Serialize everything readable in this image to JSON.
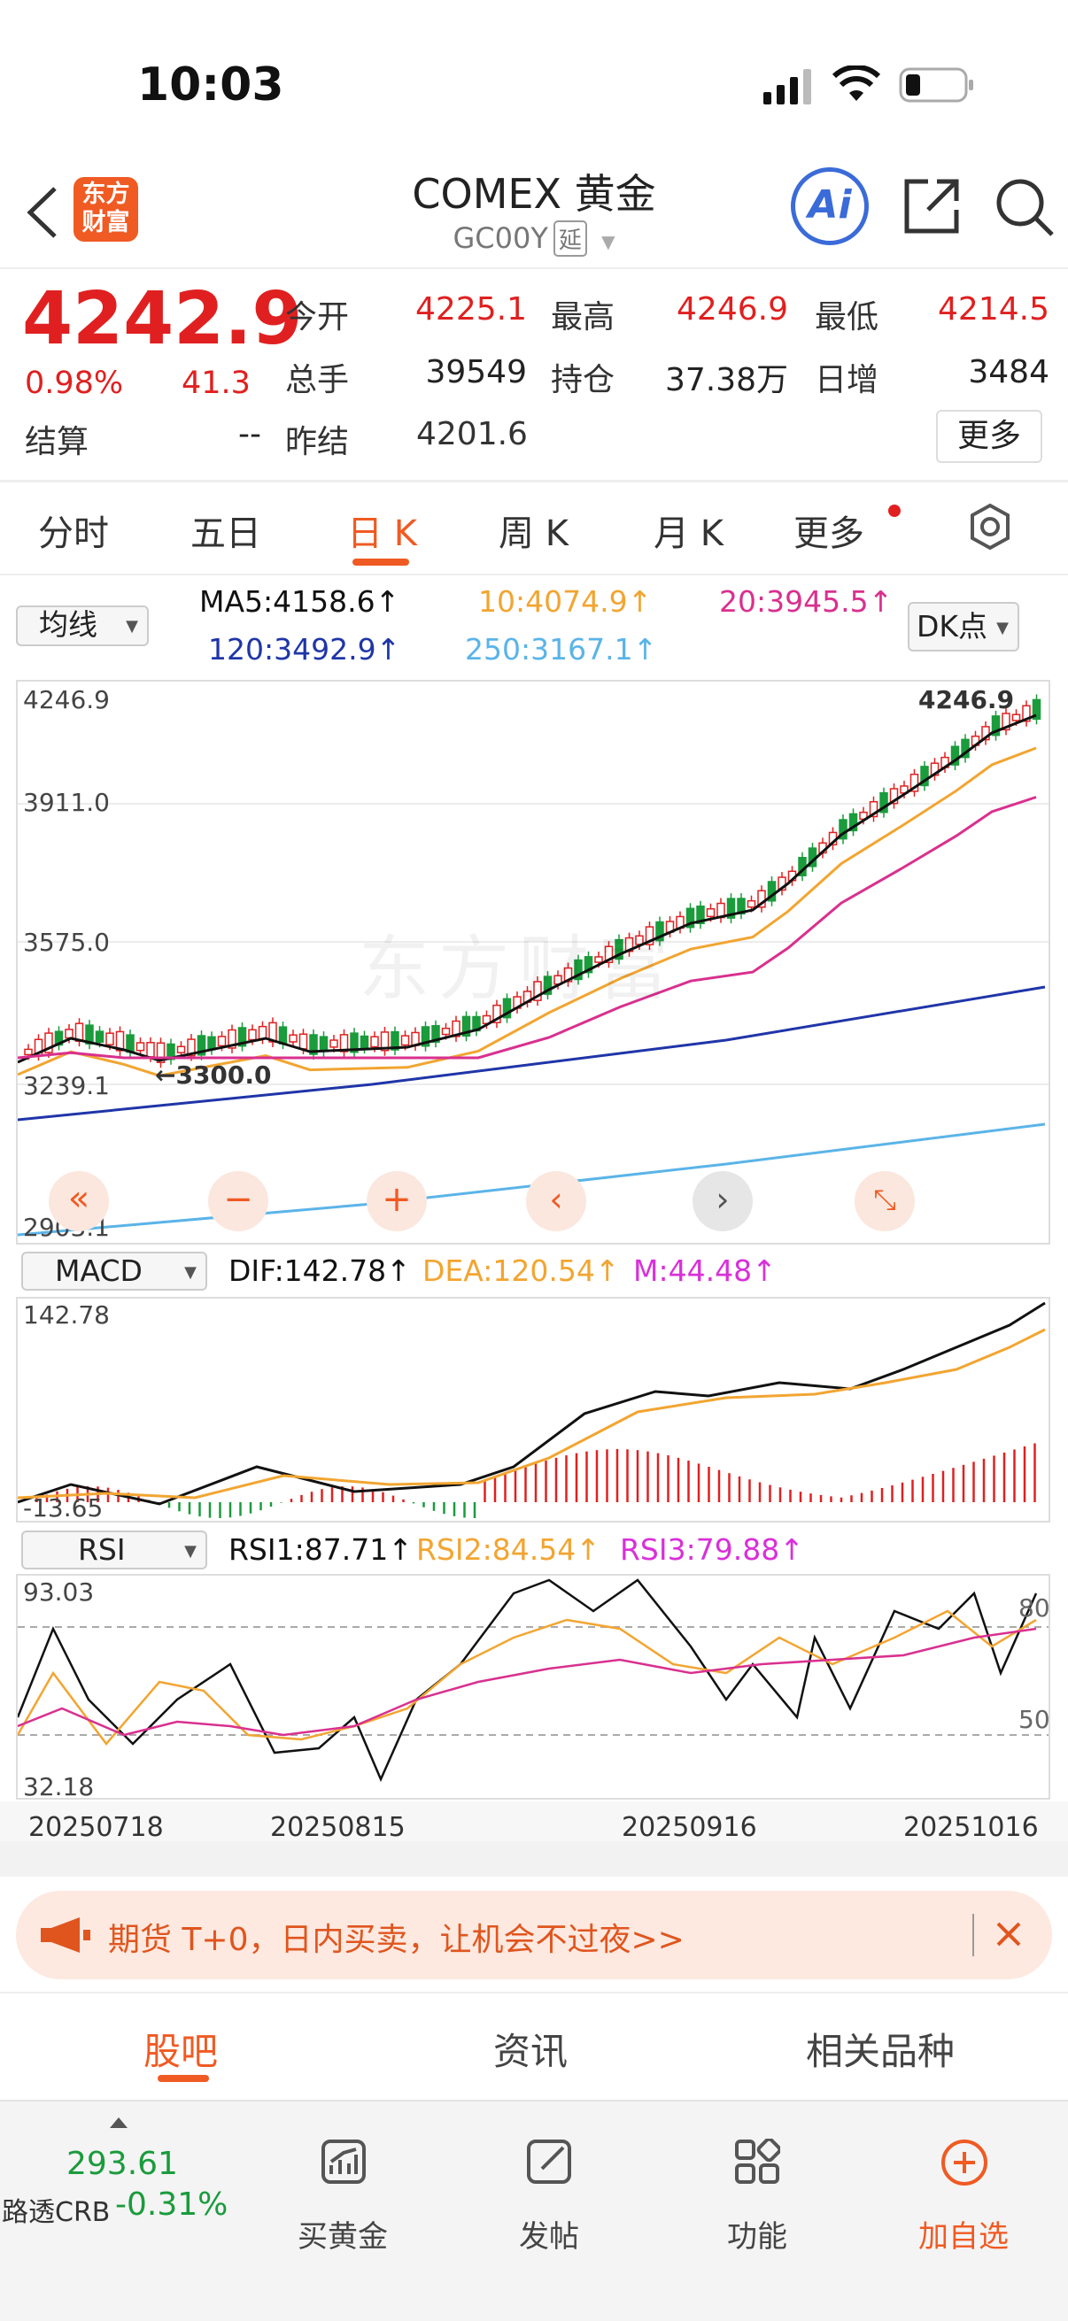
{
  "status_bar": {
    "time": "10:03"
  },
  "header": {
    "logo_line1": "东方",
    "logo_line2": "财富",
    "title": "COMEX 黄金",
    "code": "GC00Y",
    "delay_tag": "延",
    "ai_label": "Ai"
  },
  "quote": {
    "price": "4242.9",
    "change_pct": "0.98%",
    "change": "41.3",
    "rows": [
      [
        {
          "label": "今开",
          "value": "4225.1",
          "red": true
        },
        {
          "label": "最高",
          "value": "4246.9",
          "red": true
        },
        {
          "label": "最低",
          "value": "4214.5",
          "red": true
        }
      ],
      [
        {
          "label": "总手",
          "value": "39549",
          "red": false
        },
        {
          "label": "持仓",
          "value": "37.38万",
          "red": false
        },
        {
          "label": "日增",
          "value": "3484",
          "red": false
        }
      ]
    ],
    "settle_label": "结算",
    "settle_value": "--",
    "prev_settle_label": "昨结",
    "prev_settle_value": "4201.6",
    "more_label": "更多"
  },
  "period_tabs": [
    "分时",
    "五日",
    "日 K",
    "周 K",
    "月 K",
    "更多"
  ],
  "ma_bar": {
    "selector": "均线",
    "ma5": "MA5:4158.6↑",
    "ma10": "10:4074.9↑",
    "ma20": "20:3945.5↑",
    "ma120": "120:3492.9↑",
    "ma250": "250:3167.1↑",
    "dk_button": "DK点",
    "colors": {
      "ma5": "#111111",
      "ma10": "#f2a531",
      "ma20": "#d9308f",
      "ma120": "#1f35a8",
      "ma250": "#5ab4e8"
    }
  },
  "chart_data": {
    "type": "candlestick",
    "y_axis_labels": [
      "4246.9",
      "3911.0",
      "3575.0",
      "3239.1",
      "2903.1"
    ],
    "annotations": {
      "high_label": "4246.9",
      "low_label": "3300.0"
    },
    "watermark": "东方财富",
    "tool_buttons": [
      "double-left",
      "zoom-out",
      "zoom-in",
      "prev",
      "next",
      "fullscreen"
    ],
    "x_labels": [
      "20250718",
      "20250815",
      "20250916",
      "20251016"
    ],
    "macd": {
      "selector": "MACD",
      "dif": "DIF:142.78↑",
      "dea": "DEA:120.54↑",
      "m": "M:44.48↑",
      "y_max": "142.78",
      "y_min": "-13.65"
    },
    "rsi": {
      "selector": "RSI",
      "rsi1": "RSI1:87.71↑",
      "rsi2": "RSI2:84.54↑",
      "rsi3": "RSI3:79.88↑",
      "y_max": "93.03",
      "y_min": "32.18",
      "level_80": "80",
      "level_50": "50"
    }
  },
  "promo": {
    "text": "期货 T+0，日内买卖，让机会不过夜>>"
  },
  "bottom_tabs": [
    "股吧",
    "资讯",
    "相关品种"
  ],
  "nav": {
    "crb_value": "293.61",
    "crb_label": "路透CRB",
    "crb_change": "-0.31%",
    "items": [
      "买黄金",
      "发帖",
      "功能",
      "加自选"
    ]
  }
}
